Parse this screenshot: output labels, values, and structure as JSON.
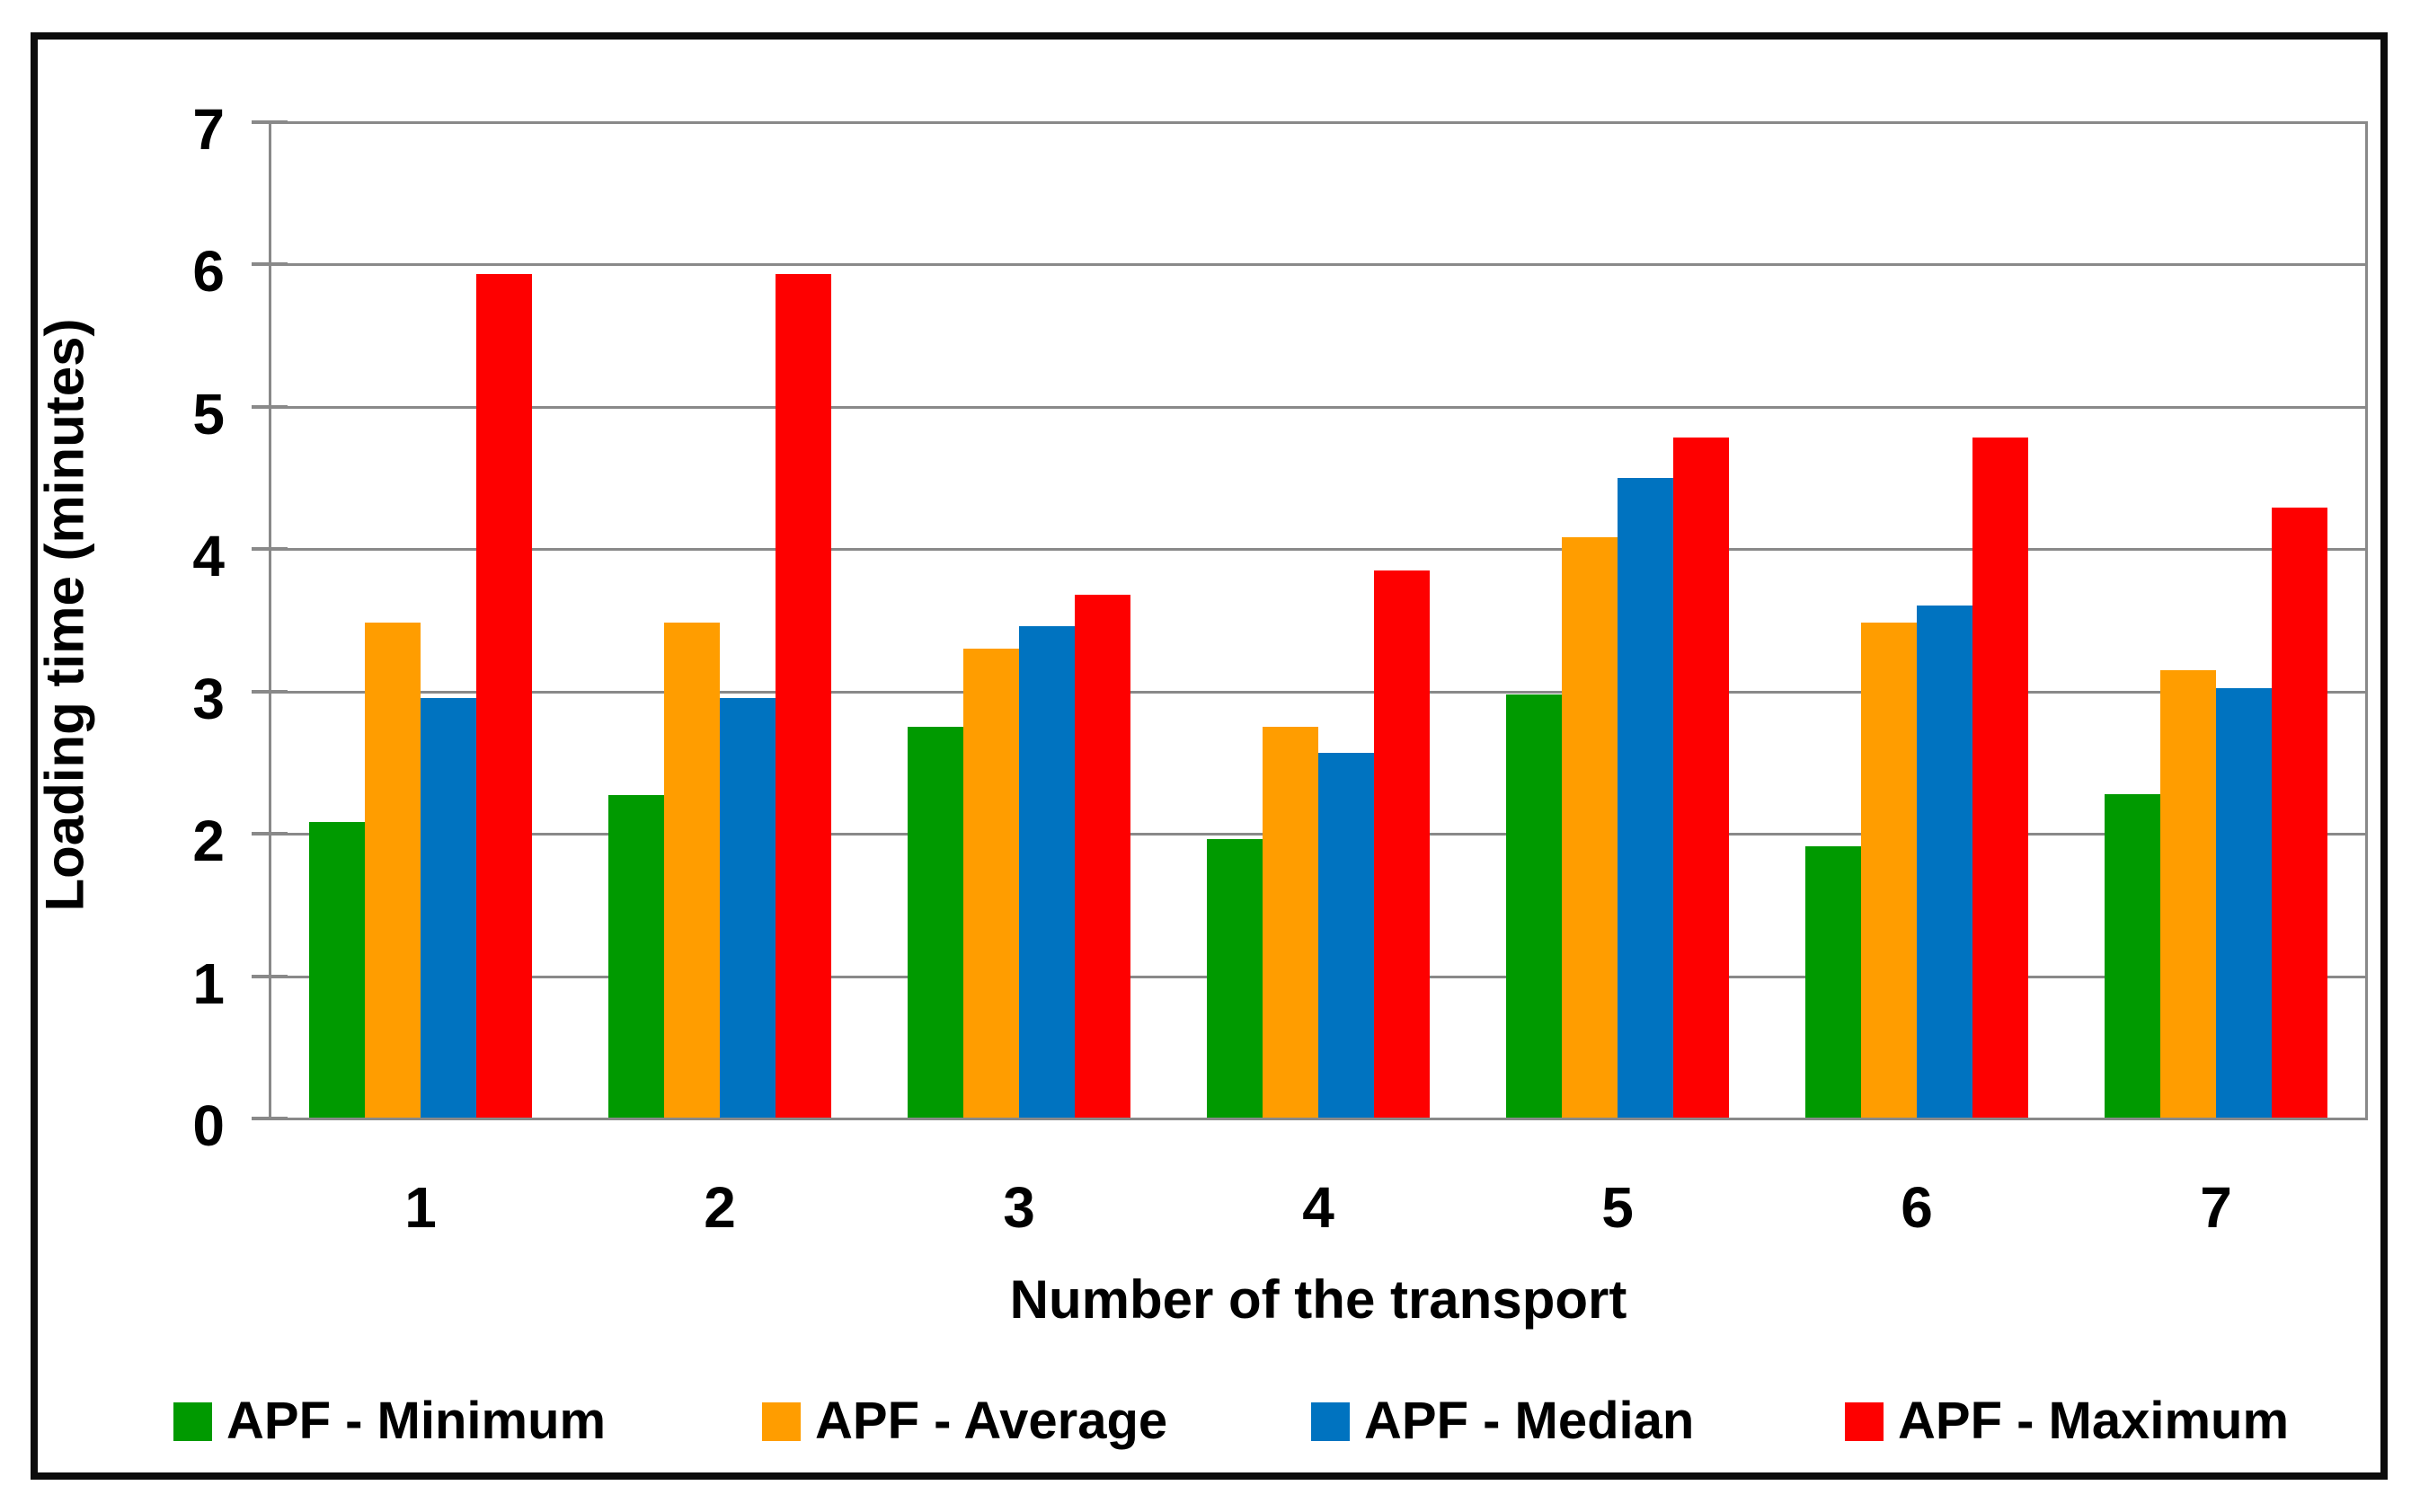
{
  "chart_data": {
    "type": "bar",
    "title": "",
    "xlabel": "Number of the transport",
    "ylabel": "Loading time (minutes)",
    "categories": [
      "1",
      "2",
      "3",
      "4",
      "5",
      "6",
      "7"
    ],
    "series": [
      {
        "name": "APF - Minimum",
        "color": "#009A00",
        "values": [
          2.08,
          2.27,
          2.75,
          1.96,
          2.98,
          1.91,
          2.28
        ]
      },
      {
        "name": "APF - Average",
        "color": "#FF9D00",
        "values": [
          3.48,
          3.48,
          3.3,
          2.75,
          4.08,
          3.48,
          3.15
        ]
      },
      {
        "name": "APF - Median",
        "color": "#0073C0",
        "values": [
          2.95,
          2.95,
          3.46,
          2.57,
          4.5,
          3.6,
          3.02
        ]
      },
      {
        "name": "APF - Maximum",
        "color": "#FE0000",
        "values": [
          5.93,
          5.93,
          3.68,
          3.85,
          4.78,
          4.78,
          4.29
        ]
      }
    ],
    "ylim": [
      0,
      7
    ],
    "yticks": [
      0,
      1,
      2,
      3,
      4,
      5,
      6,
      7
    ],
    "grid": true,
    "legend_position": "bottom"
  },
  "style": {
    "gridline_color": "#898989",
    "axis_color": "#898989",
    "frame_border_color": "#0D0D0D",
    "text_color": "#000000",
    "background_color": "#FFFFFF"
  }
}
